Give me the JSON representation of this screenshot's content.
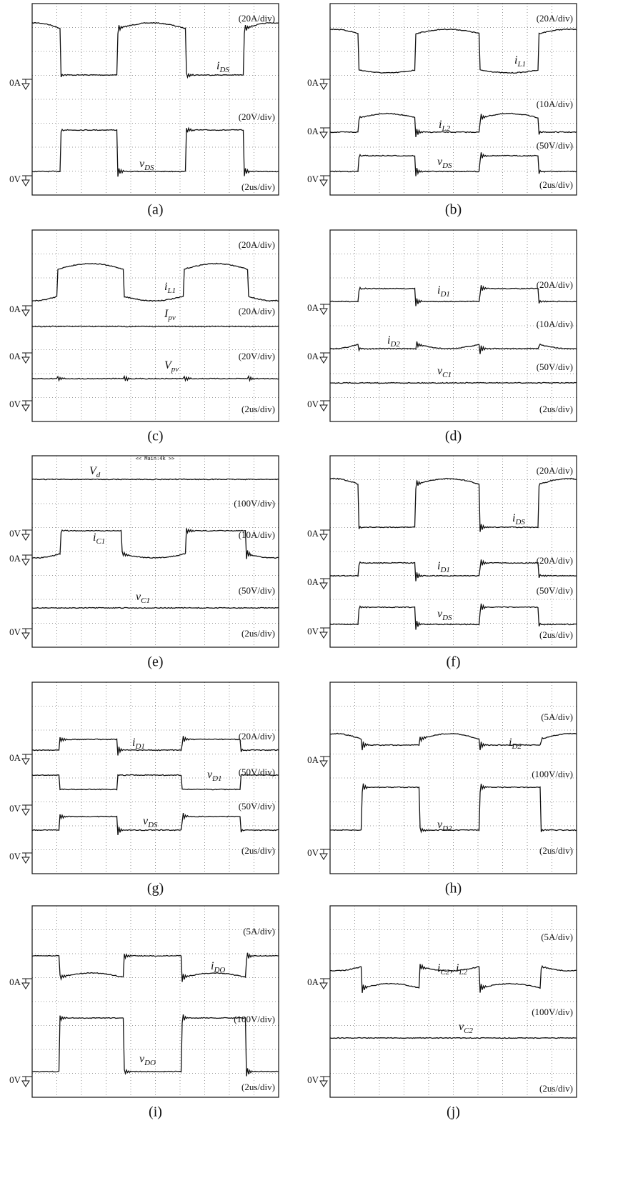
{
  "panels": [
    {
      "caption": "(a)",
      "scales": [
        "(20A/div)",
        "(20V/div)",
        "(2us/div)"
      ],
      "traces": [
        {
          "symbol": "i",
          "subscript": "DS"
        },
        {
          "symbol": "v",
          "subscript": "DS"
        }
      ],
      "grounds": [
        "0A",
        "0V"
      ]
    },
    {
      "caption": "(b)",
      "scales": [
        "(20A/div)",
        "(10A/div)",
        "(50V/div)",
        "(2us/div)"
      ],
      "traces": [
        {
          "symbol": "i",
          "subscript": "L1"
        },
        {
          "symbol": "i",
          "subscript": "L2"
        },
        {
          "symbol": "v",
          "subscript": "DS"
        }
      ],
      "grounds": [
        "0A",
        "0A",
        "0V"
      ]
    },
    {
      "caption": "(c)",
      "scales": [
        "(20A/div)",
        "(20A/div)",
        "(20V/div)",
        "(2us/div)"
      ],
      "traces": [
        {
          "symbol": "i",
          "subscript": "L1"
        },
        {
          "symbol": "I",
          "subscript": "pv"
        },
        {
          "symbol": "V",
          "subscript": "pv"
        }
      ],
      "grounds": [
        "0A",
        "0A",
        "0V"
      ]
    },
    {
      "caption": "(d)",
      "scales": [
        "(20A/div)",
        "(10A/div)",
        "(50V/div)",
        "(2us/div)"
      ],
      "traces": [
        {
          "symbol": "i",
          "subscript": "D1"
        },
        {
          "symbol": "i",
          "subscript": "D2"
        },
        {
          "symbol": "v",
          "subscript": "C1"
        }
      ],
      "grounds": [
        "0A",
        "0A",
        "0V"
      ]
    },
    {
      "caption": "(e)",
      "annotation": "<< Main:4k >>",
      "scales": [
        "(100V/div)",
        "(10A/div)",
        "(50V/div)",
        "(2us/div)"
      ],
      "traces": [
        {
          "symbol": "V",
          "subscript": "d"
        },
        {
          "symbol": "i",
          "subscript": "C1"
        },
        {
          "symbol": "v",
          "subscript": "C1"
        }
      ],
      "grounds": [
        "0V",
        "0A",
        "0V"
      ]
    },
    {
      "caption": "(f)",
      "scales": [
        "(20A/div)",
        "(20A/div)",
        "(50V/div)",
        "(2us/div)"
      ],
      "traces": [
        {
          "symbol": "i",
          "subscript": "DS"
        },
        {
          "symbol": "i",
          "subscript": "D1"
        },
        {
          "symbol": "v",
          "subscript": "DS"
        }
      ],
      "grounds": [
        "0A",
        "0A",
        "0V"
      ]
    },
    {
      "caption": "(g)",
      "scales": [
        "(20A/div)",
        "(50V/div)",
        "(50V/div)",
        "(2us/div)"
      ],
      "traces": [
        {
          "symbol": "i",
          "subscript": "D1"
        },
        {
          "symbol": "v",
          "subscript": "D1"
        },
        {
          "symbol": "v",
          "subscript": "DS"
        }
      ],
      "grounds": [
        "0A",
        "0V",
        "0V"
      ]
    },
    {
      "caption": "(h)",
      "scales": [
        "(5A/div)",
        "(100V/div)",
        "(2us/div)"
      ],
      "traces": [
        {
          "symbol": "i",
          "subscript": "D2"
        },
        {
          "symbol": "v",
          "subscript": "D2"
        }
      ],
      "grounds": [
        "0A",
        "0V"
      ]
    },
    {
      "caption": "(i)",
      "scales": [
        "(5A/div)",
        "(100V/div)",
        "(2us/div)"
      ],
      "traces": [
        {
          "symbol": "i",
          "subscript": "DO"
        },
        {
          "symbol": "v",
          "subscript": "DO"
        }
      ],
      "grounds": [
        "0A",
        "0V"
      ]
    },
    {
      "caption": "(j)",
      "scales": [
        "(5A/div)",
        "(100V/div)",
        "(2us/div)"
      ],
      "traces": [
        {
          "symbol": "i",
          "subscript": "C2"
        },
        {
          "symbol": ", i",
          "subscript": "L2"
        },
        {
          "symbol": "v",
          "subscript": "C2"
        }
      ],
      "grounds": [
        "0A",
        "0V"
      ]
    }
  ]
}
